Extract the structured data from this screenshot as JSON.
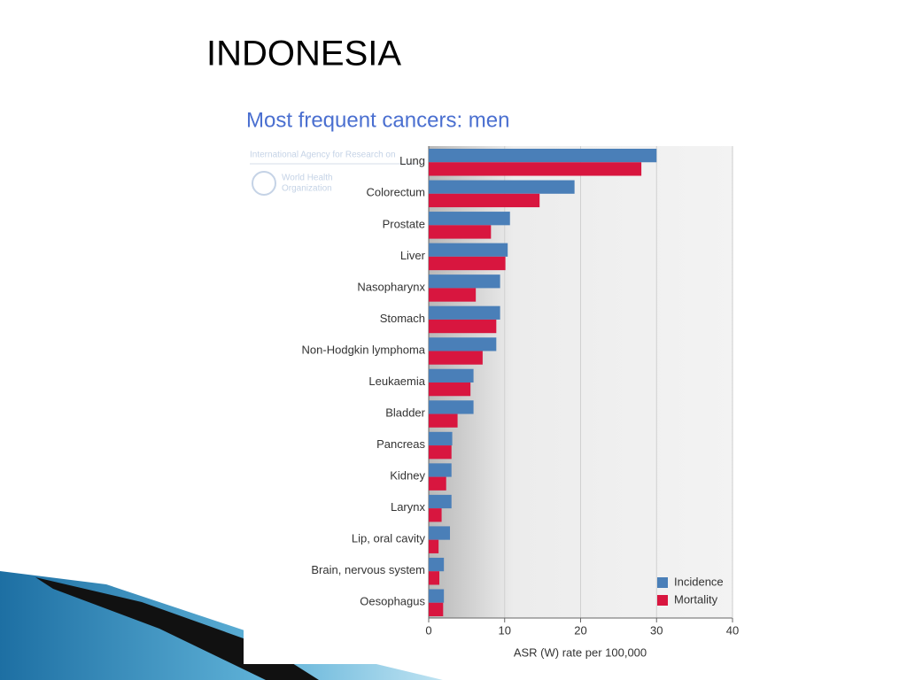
{
  "slide_title": "INDONESIA",
  "watermark": [
    "International Agency for Research on",
    "World Health",
    "Organization"
  ],
  "chart_data": {
    "type": "bar",
    "orientation": "horizontal",
    "title": "Most frequent cancers: men",
    "x_label": "ASR (W) rate per 100,000",
    "categories": [
      "Lung",
      "Colorectum",
      "Prostate",
      "Liver",
      "Nasopharynx",
      "Stomach",
      "Non-Hodgkin lymphoma",
      "Leukaemia",
      "Bladder",
      "Pancreas",
      "Kidney",
      "Larynx",
      "Lip, oral cavity",
      "Brain, nervous system",
      "Oesophagus"
    ],
    "series": [
      {
        "name": "Incidence",
        "color": "#4a7fb8",
        "values": [
          30.0,
          19.2,
          10.7,
          10.4,
          9.4,
          9.4,
          8.9,
          5.9,
          5.9,
          3.1,
          3.0,
          3.0,
          2.8,
          2.0,
          2.0
        ]
      },
      {
        "name": "Mortality",
        "color": "#d8163f",
        "values": [
          28.0,
          14.6,
          8.2,
          10.1,
          6.2,
          8.9,
          7.1,
          5.5,
          3.8,
          3.0,
          2.3,
          1.7,
          1.3,
          1.4,
          1.9
        ]
      }
    ],
    "xlim": [
      0,
      40
    ],
    "xticks": [
      0,
      10,
      20,
      30,
      40
    ],
    "grid": true,
    "legend": "bottom-right"
  }
}
